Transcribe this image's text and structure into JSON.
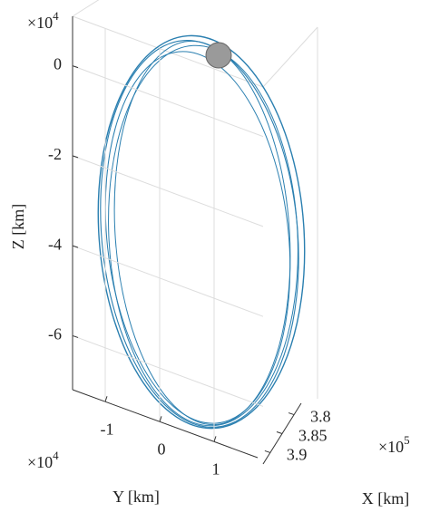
{
  "chart_data": {
    "type": "line3d",
    "zlabel": "Z [km]",
    "ylabel": "Y [km]",
    "xlabel": "X [km]",
    "zexp": {
      "base": "×10",
      "power": "4"
    },
    "yexp": {
      "base": "×10",
      "power": "4"
    },
    "xexp": {
      "base": "×10",
      "power": "5"
    },
    "zlim": [
      -7.2,
      1.1
    ],
    "zticks": [
      -6,
      -4,
      -2,
      0
    ],
    "ylim": [
      -1.6,
      1.8
    ],
    "yticks": [
      -1,
      0,
      1
    ],
    "xlim": [
      3.77,
      3.93
    ],
    "xticks": [
      3.8,
      3.85,
      3.9
    ],
    "color": "#2a7fb0",
    "grid": true
  }
}
